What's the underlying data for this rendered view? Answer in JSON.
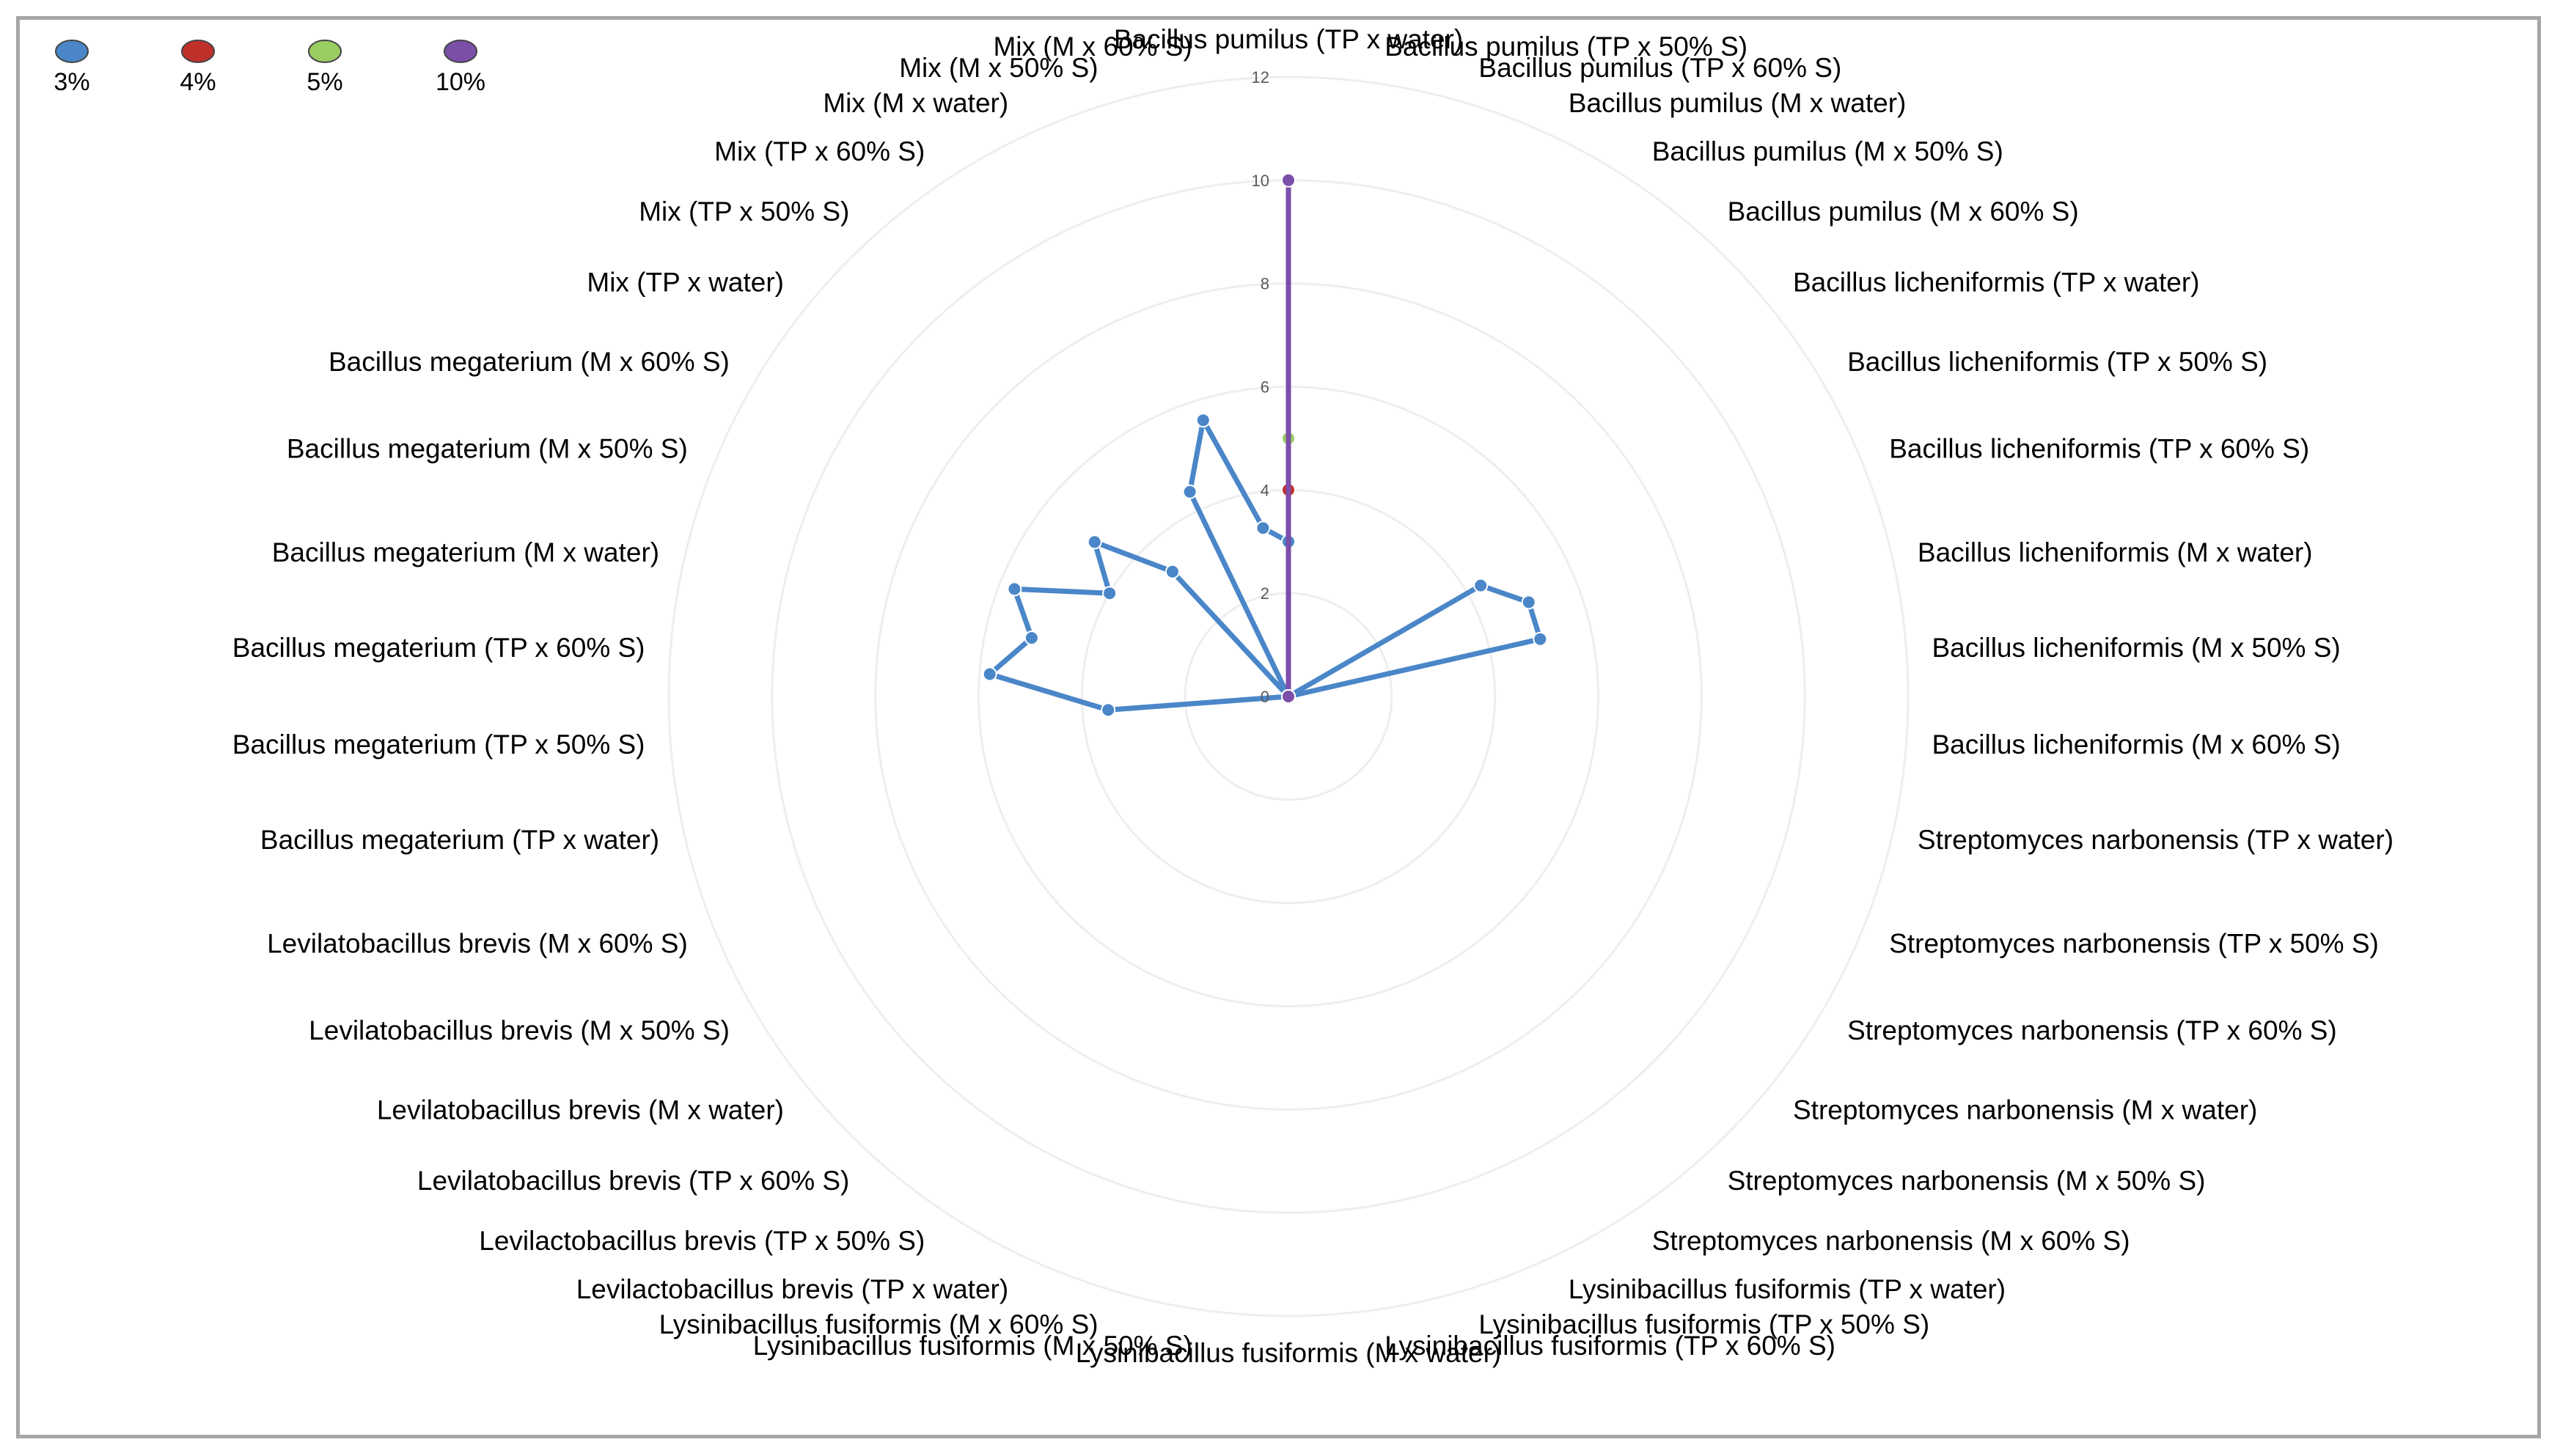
{
  "chart_data": {
    "type": "radar",
    "categories": [
      "Bacillus pumilus (TP x water)",
      "Bacillus pumilus (TP x 50% S)",
      "Bacillus pumilus (TP x 60% S)",
      "Bacillus pumilus (M x water)",
      "Bacillus pumilus (M x 50% S)",
      "Bacillus pumilus (M x 60% S)",
      "Bacillus licheniformis (TP x water)",
      "Bacillus licheniformis (TP x 50% S)",
      "Bacillus licheniformis (TP x 60% S)",
      "Bacillus licheniformis (M x water)",
      "Bacillus licheniformis (M x 50% S)",
      "Bacillus licheniformis (M x 60% S)",
      "Streptomyces narbonensis (TP x water)",
      "Streptomyces narbonensis (TP x 50% S)",
      "Streptomyces narbonensis (TP x 60% S)",
      "Streptomyces narbonensis (M x water)",
      "Streptomyces narbonensis (M x 50% S)",
      "Streptomyces narbonensis (M x 60% S)",
      "Lysinibacillus fusiformis (TP x water)",
      "Lysinibacillus fusiformis (TP x 50% S)",
      "Lysinibacillus fusiformis (TP x 60% S)",
      "Lysinibacillus fusiformis (M x water)",
      "Lysinibacillus fusiformis (M x 50% S)",
      "Lysinibacillus fusiformis (M x 60% S)",
      "Levilactobacillus brevis (TP x water)",
      "Levilactobacillus brevis (TP x 50% S)",
      "Levilatobacillus brevis (TP x 60% S)",
      "Levilatobacillus brevis (M x water)",
      "Levilatobacillus brevis (M x 50% S)",
      "Levilatobacillus brevis (M x 60% S)",
      "Bacillus megaterium (TP x water)",
      "Bacillus megaterium (TP x 50% S)",
      "Bacillus megaterium (TP x 60% S)",
      "Bacillus megaterium (M x water)",
      "Bacillus megaterium (M x 50% S)",
      "Bacillus megaterium (M x 60% S)",
      "Mix (TP x water)",
      "Mix (TP x 50% S)",
      "Mix (TP x 60% S)",
      "Mix (M x water)",
      "Mix (M x 50% S)",
      "Mix (M x 60% S)"
    ],
    "series": [
      {
        "name": "3%",
        "color": "#4a86c8",
        "values": [
          3,
          0,
          0,
          0,
          0,
          0,
          0,
          4.3,
          5,
          5,
          0,
          0,
          0,
          0,
          0,
          0,
          0,
          0,
          0,
          0,
          0,
          0,
          0,
          0,
          0,
          0,
          0,
          0,
          0,
          0,
          0,
          3.5,
          5.8,
          5.1,
          5.7,
          4,
          4.8,
          3.3,
          0,
          4.4,
          5.6,
          3.3
        ]
      },
      {
        "name": "4%",
        "color": "#c0302b",
        "values": [
          4,
          0,
          0,
          0,
          0,
          0,
          0,
          0,
          0,
          0,
          0,
          0,
          0,
          0,
          0,
          0,
          0,
          0,
          0,
          0,
          0,
          0,
          0,
          0,
          0,
          0,
          0,
          0,
          0,
          0,
          0,
          0,
          0,
          0,
          0,
          0,
          0,
          0,
          0,
          0,
          0,
          0
        ]
      },
      {
        "name": "5%",
        "color": "#9acd62",
        "values": [
          5,
          0,
          0,
          0,
          0,
          0,
          0,
          0,
          0,
          0,
          0,
          0,
          0,
          0,
          0,
          0,
          0,
          0,
          0,
          0,
          0,
          0,
          0,
          0,
          0,
          0,
          0,
          0,
          0,
          0,
          0,
          0,
          0,
          0,
          0,
          0,
          0,
          0,
          0,
          0,
          0,
          0
        ]
      },
      {
        "name": "10%",
        "color": "#7b4ea8",
        "values": [
          10,
          0,
          0,
          0,
          0,
          0,
          0,
          0,
          0,
          0,
          0,
          0,
          0,
          0,
          0,
          0,
          0,
          0,
          0,
          0,
          0,
          0,
          0,
          0,
          0,
          0,
          0,
          0,
          0,
          0,
          0,
          0,
          0,
          0,
          0,
          0,
          0,
          0,
          0,
          0,
          0,
          0
        ]
      }
    ],
    "radial_ticks": [
      "0",
      "2",
      "4",
      "6",
      "8",
      "10",
      "12"
    ],
    "rmax": 12,
    "legend_position": "top-left",
    "grid": true
  }
}
